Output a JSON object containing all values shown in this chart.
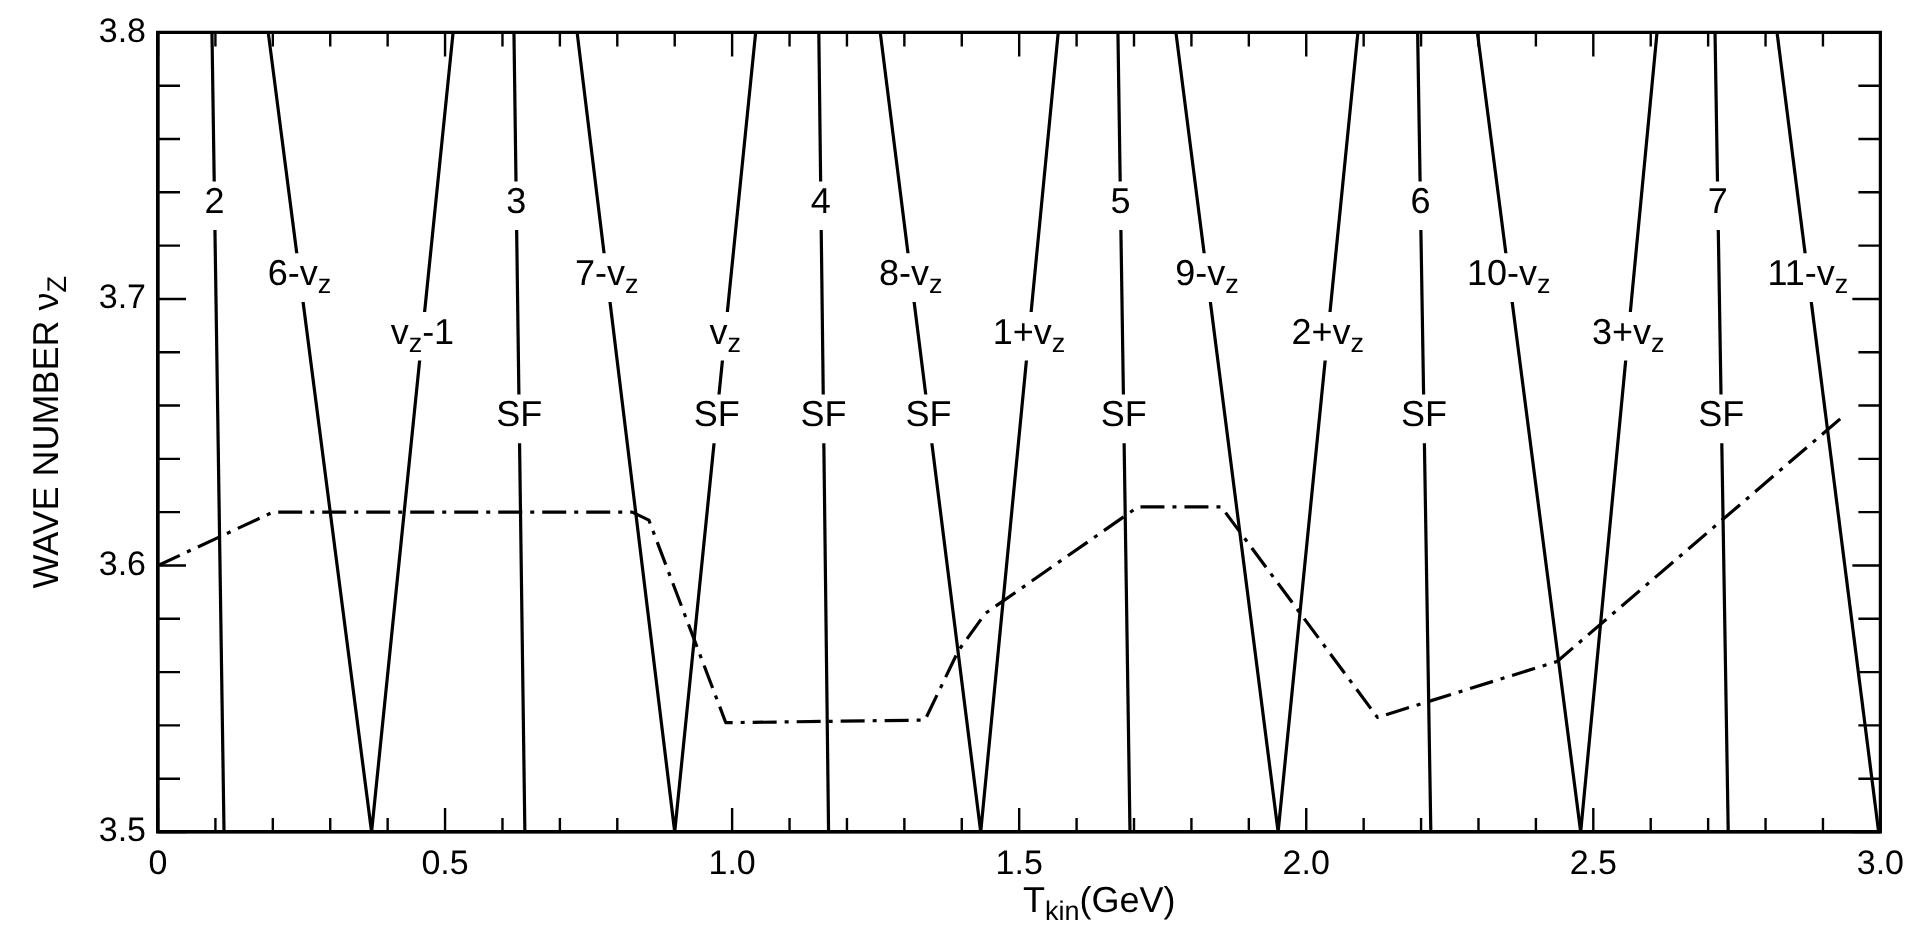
{
  "chart_data": {
    "type": "line",
    "xlabel": "T$_{kin}$(GeV)",
    "ylabel": "WAVE NUMBER ν$_{Z}$",
    "xlim": [
      0,
      3.0
    ],
    "ylim": [
      3.5,
      3.8
    ],
    "xticks": [
      {
        "value": 0,
        "label": "0"
      },
      {
        "value": 0.1,
        "label": null
      },
      {
        "value": 0.2,
        "label": null
      },
      {
        "value": 0.3,
        "label": null
      },
      {
        "value": 0.4,
        "label": null
      },
      {
        "value": 0.5,
        "label": "0.5"
      },
      {
        "value": 0.6,
        "label": null
      },
      {
        "value": 0.7,
        "label": null
      },
      {
        "value": 0.8,
        "label": null
      },
      {
        "value": 0.9,
        "label": null
      },
      {
        "value": 1.0,
        "label": "1.0"
      },
      {
        "value": 1.1,
        "label": null
      },
      {
        "value": 1.2,
        "label": null
      },
      {
        "value": 1.3,
        "label": null
      },
      {
        "value": 1.4,
        "label": null
      },
      {
        "value": 1.5,
        "label": "1.5"
      },
      {
        "value": 1.6,
        "label": null
      },
      {
        "value": 1.7,
        "label": null
      },
      {
        "value": 1.8,
        "label": null
      },
      {
        "value": 1.9,
        "label": null
      },
      {
        "value": 2.0,
        "label": "2.0"
      },
      {
        "value": 2.1,
        "label": null
      },
      {
        "value": 2.2,
        "label": null
      },
      {
        "value": 2.3,
        "label": null
      },
      {
        "value": 2.4,
        "label": null
      },
      {
        "value": 2.5,
        "label": "2.5"
      },
      {
        "value": 2.6,
        "label": null
      },
      {
        "value": 2.7,
        "label": null
      },
      {
        "value": 2.8,
        "label": null
      },
      {
        "value": 2.9,
        "label": null
      },
      {
        "value": 3.0,
        "label": "3.0"
      }
    ],
    "yticks": [
      3.5,
      {
        "value": 3.52,
        "label": null
      },
      {
        "value": 3.54,
        "label": null
      },
      {
        "value": 3.56,
        "label": null
      },
      {
        "value": 3.58,
        "label": null
      },
      3.6,
      {
        "value": 3.62,
        "label": null
      },
      {
        "value": 3.64,
        "label": null
      },
      {
        "value": 3.66,
        "label": null
      },
      {
        "value": 3.68,
        "label": null
      },
      3.7,
      {
        "value": 3.72,
        "label": null
      },
      {
        "value": 3.74,
        "label": null
      },
      {
        "value": 3.76,
        "label": null
      },
      {
        "value": 3.78,
        "label": null
      },
      3.8
    ],
    "grid": false,
    "legend": false,
    "marker": "none",
    "series": [
      {
        "color": "#000000",
        "x": [
          0.094,
          0.115
        ],
        "values": [
          3.8,
          3.5
        ]
      },
      {
        "color": "#000000",
        "x": [
          0.62,
          0.639
        ],
        "values": [
          3.8,
          3.5
        ]
      },
      {
        "color": "#000000",
        "x": [
          1.151,
          1.168
        ],
        "values": [
          3.8,
          3.5
        ]
      },
      {
        "color": "#000000",
        "x": [
          1.672,
          1.693
        ],
        "values": [
          3.8,
          3.5
        ]
      },
      {
        "color": "#000000",
        "x": [
          2.194,
          2.217
        ],
        "values": [
          3.8,
          3.5
        ]
      },
      {
        "color": "#000000",
        "x": [
          2.712,
          2.735
        ],
        "values": [
          3.8,
          3.5
        ]
      },
      {
        "color": "#000000",
        "x": [
          0.192,
          0.372,
          0.514
        ],
        "values": [
          3.8,
          3.5,
          3.8
        ]
      },
      {
        "color": "#000000",
        "x": [
          0.73,
          0.9,
          1.041
        ],
        "values": [
          3.8,
          3.5,
          3.8
        ]
      },
      {
        "color": "#000000",
        "x": [
          1.258,
          1.433,
          1.568
        ],
        "values": [
          3.8,
          3.5,
          3.8
        ]
      },
      {
        "color": "#000000",
        "x": [
          1.773,
          1.951,
          2.09
        ],
        "values": [
          3.8,
          3.5,
          3.8
        ]
      },
      {
        "color": "#000000",
        "x": [
          2.298,
          2.478,
          2.611
        ],
        "values": [
          3.8,
          3.5,
          3.8
        ]
      },
      {
        "color": "#000000",
        "x": [
          2.82,
          2.997
        ],
        "values": [
          3.8,
          3.5
        ]
      },
      {
        "color": "#000000",
        "line_style": "dashed",
        "x": [
          0,
          0.2,
          0.826,
          0.855,
          0.989,
          1.336,
          1.394,
          1.441,
          1.707,
          1.852,
          2.124,
          2.437,
          2.93
        ],
        "values": [
          3.6,
          3.62,
          3.62,
          3.617,
          3.541,
          3.542,
          3.568,
          3.582,
          3.622,
          3.622,
          3.543,
          3.564,
          3.655
        ]
      }
    ],
    "annotations": [
      {
        "text": "2",
        "x": 0.0985,
        "y": 3.736
      },
      {
        "text": "6-v$_{z}$",
        "x": 0.2466,
        "y": 3.709
      },
      {
        "text": "v$_{z}$-1",
        "x": 0.4605,
        "y": 3.687
      },
      {
        "text": "3",
        "x": 0.624,
        "y": 3.736
      },
      {
        "text": "SF",
        "x": 0.6291,
        "y": 3.656
      },
      {
        "text": "7-v$_{z}$",
        "x": 0.7816,
        "y": 3.709
      },
      {
        "text": "v$_{z}$",
        "x": 0.9879,
        "y": 3.687
      },
      {
        "text": "SF",
        "x": 0.9733,
        "y": 3.656
      },
      {
        "text": "4",
        "x": 1.1546,
        "y": 3.736
      },
      {
        "text": "SF",
        "x": 1.1592,
        "y": 3.656
      },
      {
        "text": "8-v$_{z}$",
        "x": 1.3111,
        "y": 3.709
      },
      {
        "text": "SF",
        "x": 1.342,
        "y": 3.656
      },
      {
        "text": "1+v$_{z}$",
        "x": 1.5171,
        "y": 3.687
      },
      {
        "text": "5",
        "x": 1.6765,
        "y": 3.736
      },
      {
        "text": "SF",
        "x": 1.6821,
        "y": 3.656
      },
      {
        "text": "9-v$_{z}$",
        "x": 1.827,
        "y": 3.709
      },
      {
        "text": "2+v$_{z}$",
        "x": 2.0376,
        "y": 3.687
      },
      {
        "text": "6",
        "x": 2.1989,
        "y": 3.736
      },
      {
        "text": "SF",
        "x": 2.205,
        "y": 3.656
      },
      {
        "text": "10-v$_{z}$",
        "x": 2.3526,
        "y": 3.709
      },
      {
        "text": "3+v$_{z}$",
        "x": 2.5609,
        "y": 3.687
      },
      {
        "text": "7",
        "x": 2.7169,
        "y": 3.736
      },
      {
        "text": "SF",
        "x": 2.723,
        "y": 3.656
      },
      {
        "text": "11-v$_{z}$",
        "x": 2.8737,
        "y": 3.709
      }
    ]
  }
}
